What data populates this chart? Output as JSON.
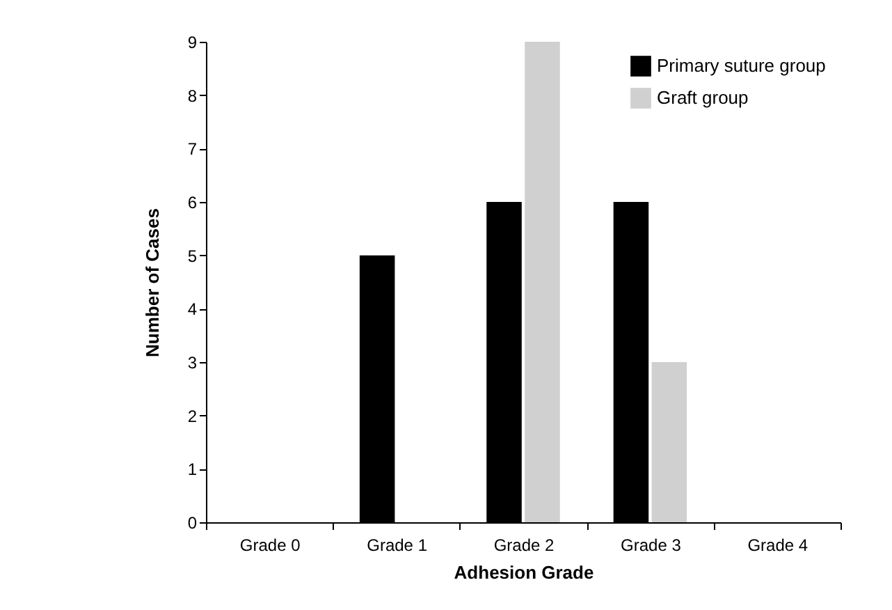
{
  "chart_data": {
    "type": "bar",
    "xlabel": "Adhesion Grade",
    "ylabel": "Number of Cases",
    "categories": [
      "Grade 0",
      "Grade 1",
      "Grade 2",
      "Grade 3",
      "Grade 4"
    ],
    "series": [
      {
        "name": "Primary suture group",
        "color": "#000000",
        "values": [
          0,
          5,
          6,
          6,
          0
        ]
      },
      {
        "name": "Graft group",
        "color": "#d0d0d0",
        "values": [
          0,
          0,
          9,
          3,
          0
        ]
      }
    ],
    "ylim": [
      0,
      9
    ],
    "yticks": [
      0,
      1,
      2,
      3,
      4,
      5,
      6,
      7,
      8,
      9
    ],
    "grid": false,
    "legend": "top right"
  }
}
